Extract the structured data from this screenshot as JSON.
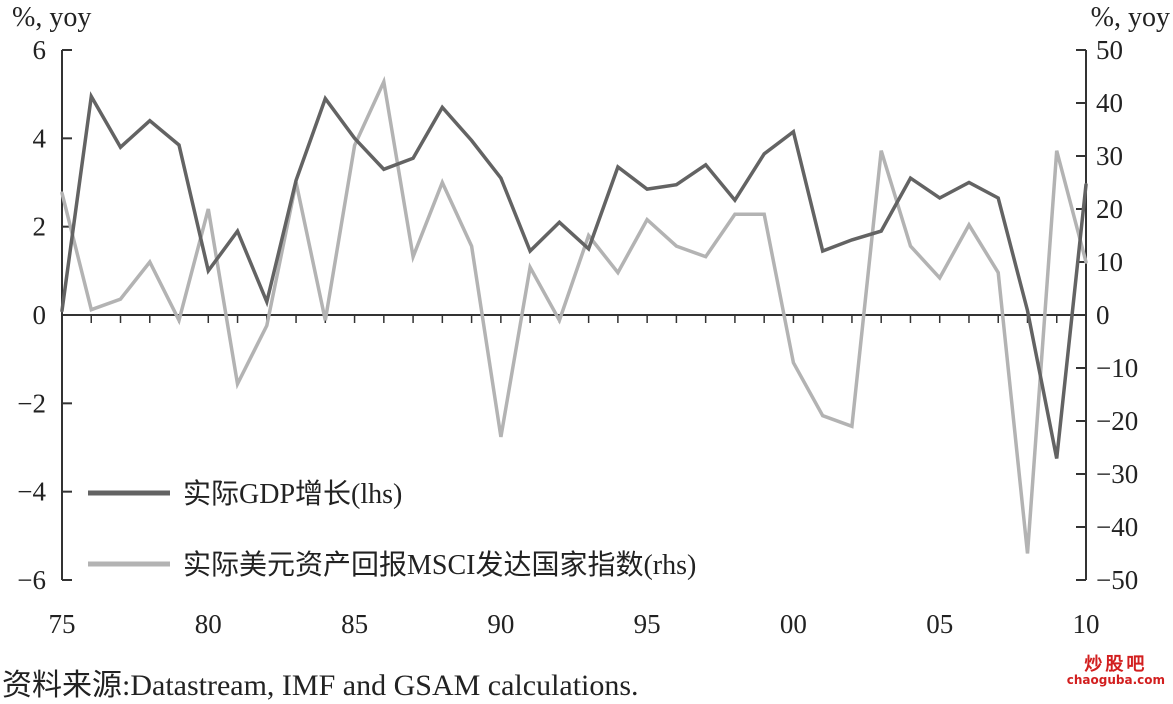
{
  "chart_data": {
    "type": "line",
    "left_unit": "%, yoy",
    "right_unit": "%, yoy",
    "x": [
      1975,
      1976,
      1977,
      1978,
      1979,
      1980,
      1981,
      1982,
      1983,
      1984,
      1985,
      1986,
      1987,
      1988,
      1989,
      1990,
      1991,
      1992,
      1993,
      1994,
      1995,
      1996,
      1997,
      1998,
      1999,
      2000,
      2001,
      2002,
      2003,
      2004,
      2005,
      2006,
      2007,
      2008,
      2009,
      2010
    ],
    "x_tick_labels": [
      "75",
      "80",
      "85",
      "90",
      "95",
      "00",
      "05",
      "10"
    ],
    "x_tick_values": [
      1975,
      1980,
      1985,
      1990,
      1995,
      2000,
      2005,
      2010
    ],
    "ylim_left": [
      -6,
      6
    ],
    "y_ticks_left": [
      "6",
      "4",
      "2",
      "0",
      "−2",
      "−4",
      "−6"
    ],
    "ylim_right": [
      -50,
      50
    ],
    "y_ticks_right": [
      "50",
      "40",
      "30",
      "20",
      "10",
      "0",
      "−10",
      "−20",
      "−30",
      "−40",
      "−50"
    ],
    "series": [
      {
        "name": "实际GDP增长(lhs)",
        "axis": "left",
        "color": "#636363",
        "values": [
          0.1,
          4.95,
          3.8,
          4.4,
          3.85,
          1.0,
          1.9,
          0.3,
          3.05,
          4.9,
          4.0,
          3.3,
          3.55,
          4.7,
          3.95,
          3.1,
          1.45,
          2.1,
          1.5,
          3.35,
          2.85,
          2.95,
          3.4,
          2.6,
          3.65,
          4.15,
          1.45,
          1.7,
          1.9,
          3.1,
          2.65,
          3.0,
          2.65,
          0.1,
          -3.25,
          2.95
        ]
      },
      {
        "name": "实际美元资产回报MSCI发达国家指数(rhs)",
        "axis": "right",
        "color": "#b3b3b3",
        "values": [
          23,
          1,
          3,
          10,
          -1,
          20,
          -13,
          -2,
          25,
          -1,
          32,
          44,
          11,
          25,
          13,
          -23,
          9,
          -1,
          15,
          8,
          18,
          13,
          11,
          19,
          19,
          -9,
          -19,
          -21,
          31,
          13,
          7,
          17,
          8,
          -45,
          31,
          10
        ]
      }
    ]
  },
  "source": "资料来源:Datastream, IMF and GSAM calculations.",
  "watermark": {
    "cn": "炒股吧",
    "en": "chaoguba.com"
  }
}
